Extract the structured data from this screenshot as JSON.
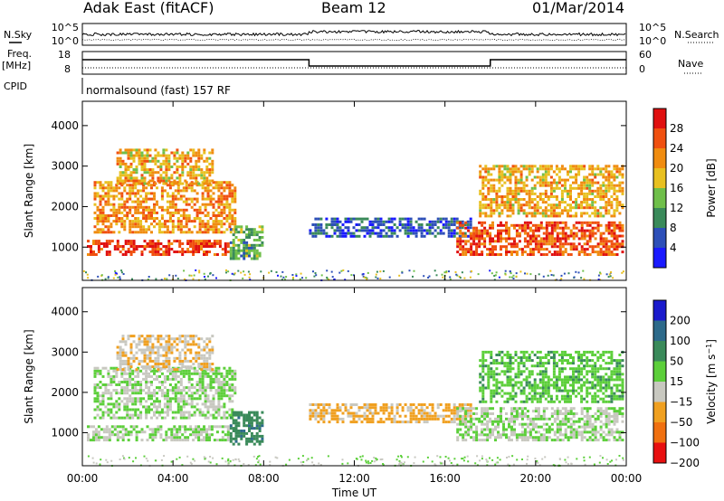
{
  "header": {
    "title": "Adak East (fitACF)",
    "beam": "Beam 12",
    "date": "01/Mar/2014"
  },
  "strips": {
    "nsky_label": "N.Sky",
    "nsearch_label": "N.Search",
    "noise_ticks_left": [
      "10^5",
      "10^0"
    ],
    "noise_ticks_right": [
      "10^5",
      "10^0"
    ],
    "freq_label_top": "Freq.",
    "freq_label_unit": "[MHz]",
    "freq_ticks": [
      "18",
      "8"
    ],
    "nave_label": "Nave",
    "nave_ticks": [
      "60",
      "0"
    ],
    "cpid_label": "CPID",
    "cpid_text": "normalsound (fast) 157 RF"
  },
  "chart_data": [
    {
      "type": "heatmap",
      "name": "power-panel",
      "xlabel": "",
      "ylabel": "Slant Range [km]",
      "x_ticks": [
        "00:00",
        "04:00",
        "08:00",
        "12:00",
        "16:00",
        "20:00",
        "00:00"
      ],
      "y_ticks": [
        1000,
        2000,
        3000,
        4000
      ],
      "xlim": [
        0,
        24
      ],
      "ylim": [
        180,
        4600
      ],
      "colorbar": {
        "label": "Power [dB]",
        "ticks": [
          4,
          8,
          12,
          16,
          20,
          24,
          28
        ],
        "range": [
          0,
          32
        ],
        "colors": [
          "#1a1aff",
          "#2d4fb8",
          "#3a8a5a",
          "#6fbf4a",
          "#e8c020",
          "#f08c10",
          "#f05010",
          "#e01010"
        ]
      },
      "regions": [
        {
          "t0": 0.2,
          "t1": 6.5,
          "r0": 850,
          "r1": 1250,
          "level": 28
        },
        {
          "t0": 0.5,
          "t1": 6.8,
          "r0": 1400,
          "r1": 2700,
          "level": 22
        },
        {
          "t0": 1.5,
          "t1": 5.8,
          "r0": 2600,
          "r1": 3500,
          "level": 20
        },
        {
          "t0": 6.5,
          "t1": 8.0,
          "r0": 750,
          "r1": 1600,
          "level": 12
        },
        {
          "t0": 10.0,
          "t1": 17.2,
          "r0": 1300,
          "r1": 1800,
          "level": 6
        },
        {
          "t0": 16.5,
          "t1": 23.9,
          "r0": 850,
          "r1": 1700,
          "level": 26
        },
        {
          "t0": 17.5,
          "t1": 23.9,
          "r0": 1800,
          "r1": 3100,
          "level": 20
        }
      ]
    },
    {
      "type": "heatmap",
      "name": "velocity-panel",
      "xlabel": "Time UT",
      "ylabel": "Slant Range [km]",
      "x_ticks": [
        "00:00",
        "04:00",
        "08:00",
        "12:00",
        "16:00",
        "20:00",
        "00:00"
      ],
      "y_ticks": [
        1000,
        2000,
        3000,
        4000
      ],
      "xlim": [
        0,
        24
      ],
      "ylim": [
        180,
        4600
      ],
      "colorbar": {
        "label": "Velocity [m s^-1]",
        "ticks": [
          200,
          100,
          50,
          15,
          -15,
          -50,
          -100,
          -200
        ],
        "colors": [
          "#1a1acc",
          "#2d6a8a",
          "#3a8a5a",
          "#5ccf3a",
          "#c8c8c0",
          "#f0a020",
          "#f07010",
          "#e81010"
        ]
      },
      "regions": [
        {
          "t0": 0.2,
          "t1": 6.5,
          "r0": 850,
          "r1": 1250,
          "value": 0
        },
        {
          "t0": 0.5,
          "t1": 6.8,
          "r0": 1400,
          "r1": 2700,
          "value": 0
        },
        {
          "t0": 1.5,
          "t1": 5.8,
          "r0": 2600,
          "r1": 3500,
          "value": -30
        },
        {
          "t0": 6.5,
          "t1": 8.0,
          "r0": 750,
          "r1": 1600,
          "value": 60
        },
        {
          "t0": 10.0,
          "t1": 17.2,
          "r0": 1300,
          "r1": 1800,
          "value": -40
        },
        {
          "t0": 16.5,
          "t1": 23.9,
          "r0": 850,
          "r1": 1700,
          "value": 0
        },
        {
          "t0": 17.5,
          "t1": 23.9,
          "r0": 1800,
          "r1": 3100,
          "value": 20
        }
      ]
    }
  ]
}
